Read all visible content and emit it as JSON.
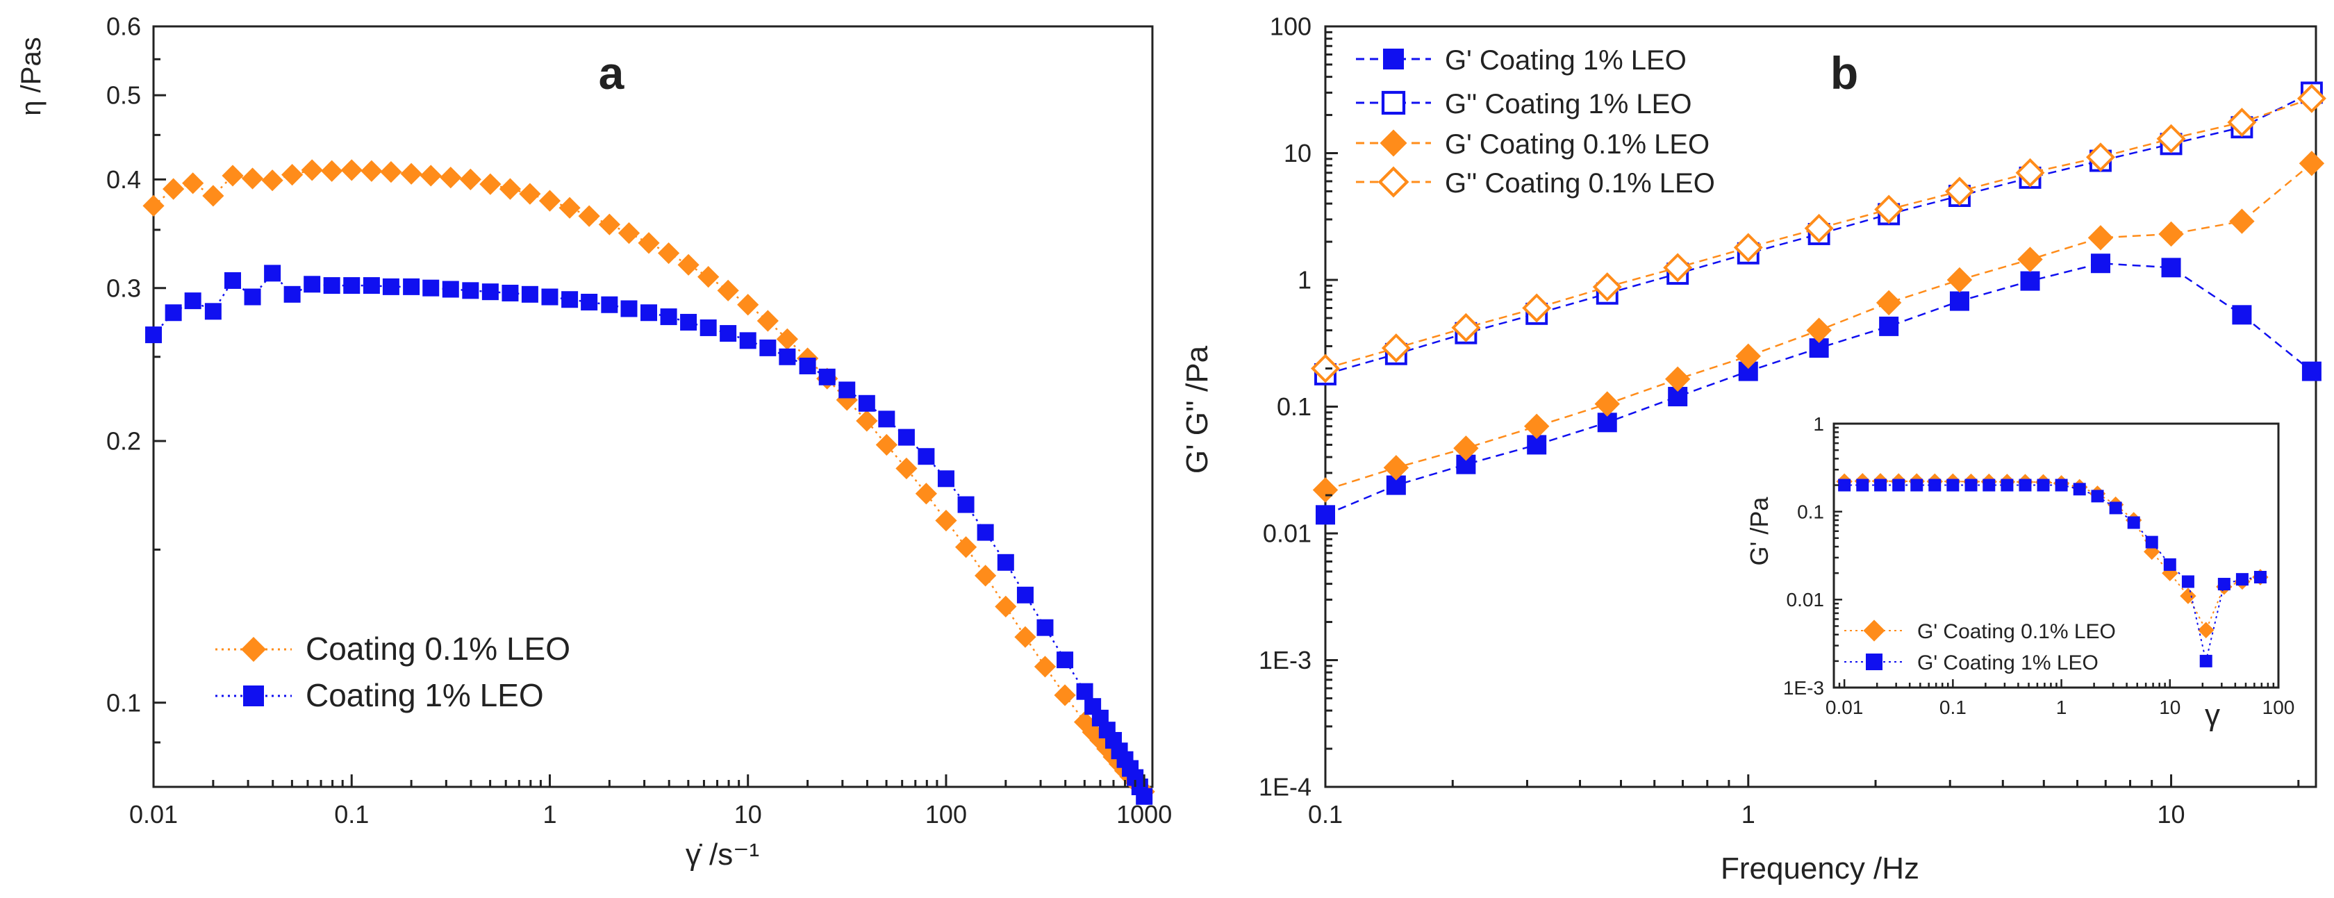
{
  "colors": {
    "orange": "#FF8C1A",
    "blue": "#1010F0",
    "axis": "#222222"
  },
  "chart_data": [
    {
      "id": "a",
      "type": "line",
      "panel_label": "a",
      "xlabel": "γ̇ /s⁻¹",
      "ylabel": "η /Pas",
      "xscale": "log",
      "yscale": "log",
      "xlim": [
        0.01,
        1100
      ],
      "ylim": [
        0.08,
        0.6
      ],
      "xticks": [
        0.01,
        0.1,
        1,
        10,
        100,
        1000
      ],
      "xticklabels": [
        "0.01",
        "0.1",
        "1",
        "10",
        "100",
        "1000"
      ],
      "yticks": [
        0.1,
        0.2,
        0.3,
        0.4,
        0.5,
        0.6
      ],
      "yticklabels": [
        "0.1",
        "0.2",
        "0.3",
        "0.4",
        "0.5",
        "0.6"
      ],
      "legend_position": "lower-left",
      "series": [
        {
          "name": "Coating 0.1% LEO",
          "color": "#FF8C1A",
          "marker": "diamond",
          "filled": true,
          "x": [
            0.01,
            0.0126,
            0.0158,
            0.02,
            0.0251,
            0.0316,
            0.0398,
            0.0501,
            0.0631,
            0.0794,
            0.1,
            0.126,
            0.158,
            0.2,
            0.251,
            0.316,
            0.398,
            0.501,
            0.631,
            0.794,
            1,
            1.26,
            1.58,
            2,
            2.51,
            3.16,
            3.98,
            5.01,
            6.31,
            7.94,
            10,
            12.6,
            15.8,
            20,
            25.1,
            31.6,
            39.8,
            50.1,
            63.1,
            79.4,
            100,
            126,
            158,
            200,
            251,
            316,
            398,
            501,
            550,
            600,
            650,
            700,
            750,
            800,
            850,
            900,
            950,
            1000
          ],
          "y": [
            0.373,
            0.39,
            0.396,
            0.383,
            0.404,
            0.401,
            0.399,
            0.405,
            0.41,
            0.409,
            0.41,
            0.409,
            0.408,
            0.406,
            0.404,
            0.402,
            0.4,
            0.395,
            0.39,
            0.385,
            0.378,
            0.371,
            0.363,
            0.355,
            0.347,
            0.338,
            0.329,
            0.319,
            0.309,
            0.298,
            0.287,
            0.275,
            0.262,
            0.249,
            0.236,
            0.223,
            0.211,
            0.198,
            0.186,
            0.174,
            0.162,
            0.151,
            0.14,
            0.129,
            0.119,
            0.11,
            0.102,
            0.095,
            0.0925,
            0.0905,
            0.0885,
            0.0866,
            0.085,
            0.0835,
            0.0822,
            0.081,
            0.08,
            0.079
          ]
        },
        {
          "name": "Coating 1% LEO",
          "color": "#1010F0",
          "marker": "square",
          "filled": true,
          "x": [
            0.01,
            0.0126,
            0.0158,
            0.02,
            0.0251,
            0.0316,
            0.0398,
            0.0501,
            0.0631,
            0.0794,
            0.1,
            0.126,
            0.158,
            0.2,
            0.251,
            0.316,
            0.398,
            0.501,
            0.631,
            0.794,
            1,
            1.26,
            1.58,
            2,
            2.51,
            3.16,
            3.98,
            5.01,
            6.31,
            7.94,
            10,
            12.6,
            15.8,
            20,
            25.1,
            31.6,
            39.8,
            50.1,
            63.1,
            79.4,
            100,
            126,
            158,
            200,
            251,
            316,
            398,
            501,
            550,
            600,
            650,
            700,
            750,
            800,
            850,
            900,
            950,
            1000
          ],
          "y": [
            0.265,
            0.281,
            0.29,
            0.282,
            0.306,
            0.293,
            0.312,
            0.295,
            0.303,
            0.302,
            0.302,
            0.302,
            0.301,
            0.301,
            0.3,
            0.299,
            0.298,
            0.297,
            0.296,
            0.295,
            0.293,
            0.291,
            0.289,
            0.287,
            0.284,
            0.281,
            0.278,
            0.274,
            0.27,
            0.266,
            0.261,
            0.256,
            0.25,
            0.244,
            0.237,
            0.229,
            0.221,
            0.212,
            0.202,
            0.192,
            0.181,
            0.169,
            0.157,
            0.145,
            0.133,
            0.122,
            0.112,
            0.103,
            0.099,
            0.096,
            0.093,
            0.0905,
            0.088,
            0.086,
            0.084,
            0.082,
            0.08,
            0.078
          ]
        }
      ]
    },
    {
      "id": "b",
      "type": "line",
      "panel_label": "b",
      "xlabel": "Frequency /Hz",
      "ylabel": "G'  G'' /Pa",
      "xscale": "log",
      "yscale": "log",
      "xlim": [
        0.1,
        22
      ],
      "ylim": [
        0.0001,
        100
      ],
      "xticks": [
        0.1,
        1,
        10
      ],
      "xticklabels": [
        "0.1",
        "1",
        "10"
      ],
      "yticks": [
        0.0001,
        0.001,
        0.01,
        0.1,
        1,
        10,
        100
      ],
      "yticklabels": [
        "1E-4",
        "1E-3",
        "0.01",
        "0.1",
        "1",
        "10",
        "100"
      ],
      "legend_position": "top-left",
      "x": [
        0.1,
        0.147,
        0.215,
        0.316,
        0.464,
        0.681,
        1,
        1.47,
        2.15,
        3.16,
        4.64,
        6.81,
        10,
        14.7,
        21.5
      ],
      "series": [
        {
          "name": "G' Coating 1% LEO",
          "color": "#1010F0",
          "marker": "square",
          "filled": true,
          "y": [
            0.014,
            0.024,
            0.035,
            0.05,
            0.075,
            0.12,
            0.19,
            0.29,
            0.43,
            0.68,
            0.98,
            1.35,
            1.25,
            0.53,
            0.19
          ]
        },
        {
          "name": "G'' Coating 1% LEO",
          "color": "#1010F0",
          "marker": "square",
          "filled": false,
          "y": [
            0.18,
            0.26,
            0.38,
            0.54,
            0.78,
            1.12,
            1.62,
            2.3,
            3.3,
            4.6,
            6.4,
            8.7,
            11.8,
            16,
            30
          ]
        },
        {
          "name": "G' Coating 0.1% LEO",
          "color": "#FF8C1A",
          "marker": "diamond",
          "filled": true,
          "y": [
            0.022,
            0.033,
            0.047,
            0.07,
            0.105,
            0.165,
            0.25,
            0.4,
            0.66,
            1.0,
            1.45,
            2.15,
            2.3,
            2.9,
            8.3
          ]
        },
        {
          "name": "G'' Coating 0.1% LEO",
          "color": "#FF8C1A",
          "marker": "diamond",
          "filled": false,
          "y": [
            0.2,
            0.29,
            0.42,
            0.6,
            0.88,
            1.25,
            1.8,
            2.55,
            3.6,
            5.0,
            7.0,
            9.3,
            13,
            17.5,
            27
          ]
        }
      ]
    },
    {
      "id": "b-inset",
      "type": "line",
      "xlabel": "γ",
      "ylabel": "G' /Pa",
      "xscale": "log",
      "yscale": "log",
      "xlim": [
        0.008,
        100
      ],
      "ylim": [
        0.001,
        1
      ],
      "xticks": [
        0.01,
        0.1,
        1,
        10,
        100
      ],
      "xticklabels": [
        "0.01",
        "0.1",
        "1",
        "10",
        "100"
      ],
      "yticks": [
        0.001,
        0.01,
        0.1,
        1
      ],
      "yticklabels": [
        "1E-3",
        "0.01",
        "0.1",
        "1"
      ],
      "legend_position": "bottom-left",
      "series": [
        {
          "name": "G' Coating 0.1% LEO",
          "color": "#FF8C1A",
          "marker": "diamond",
          "filled": true,
          "x": [
            0.01,
            0.0147,
            0.0215,
            0.0316,
            0.0464,
            0.0681,
            0.1,
            0.147,
            0.215,
            0.316,
            0.464,
            0.681,
            1,
            1.47,
            2.15,
            3.16,
            4.64,
            6.81,
            10,
            14.7,
            21.5,
            31.6,
            46.4,
            68.1
          ],
          "y": [
            0.22,
            0.222,
            0.222,
            0.221,
            0.221,
            0.22,
            0.22,
            0.219,
            0.219,
            0.218,
            0.217,
            0.216,
            0.21,
            0.19,
            0.16,
            0.12,
            0.08,
            0.035,
            0.02,
            0.011,
            0.0045,
            0.014,
            0.016,
            0.018
          ]
        },
        {
          "name": "G' Coating 1% LEO",
          "color": "#1010F0",
          "marker": "square",
          "filled": true,
          "x": [
            0.01,
            0.0147,
            0.0215,
            0.0316,
            0.0464,
            0.0681,
            0.1,
            0.147,
            0.215,
            0.316,
            0.464,
            0.681,
            1,
            1.47,
            2.15,
            3.16,
            4.64,
            6.81,
            10,
            14.7,
            21.5,
            31.6,
            46.4,
            68.1
          ],
          "y": [
            0.2,
            0.2,
            0.2,
            0.2,
            0.2,
            0.2,
            0.2,
            0.2,
            0.2,
            0.2,
            0.2,
            0.2,
            0.2,
            0.18,
            0.15,
            0.11,
            0.075,
            0.045,
            0.025,
            0.016,
            0.002,
            0.015,
            0.017,
            0.018
          ]
        }
      ]
    }
  ]
}
